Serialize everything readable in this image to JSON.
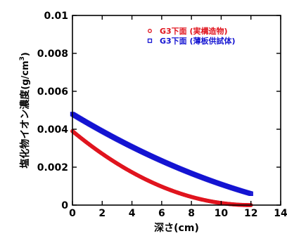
{
  "chart_data": {
    "type": "scatter",
    "title": "",
    "xlabel": "深さ(cm)",
    "ylabel_main": "塩化物イオン濃度",
    "ylabel_unit": "(g/cm",
    "ylabel_sup": "3",
    "ylabel_close": ")",
    "xlim": [
      0,
      14
    ],
    "ylim": [
      0,
      0.01
    ],
    "x_ticks": [
      "0",
      "2",
      "4",
      "6",
      "8",
      "10",
      "12",
      "14"
    ],
    "y_ticks": [
      "0",
      "0.002",
      "0.004",
      "0.006",
      "0.008",
      "0.01"
    ],
    "grid": false,
    "legend_position": "top-right",
    "series": [
      {
        "name": "G3下面 (実構造物)",
        "color": "#e0141e",
        "marker": "circle",
        "x_start": 0,
        "x_end": 12,
        "y_at_x0": 0.0039,
        "y_at_xend": 0.0,
        "model": "quadratic-to-zero"
      },
      {
        "name": "G3下面 (薄板供試体)",
        "color": "#1414d2",
        "marker": "square",
        "x_start": 0,
        "x_end": 12,
        "y_at_x0": 0.0048,
        "y_at_xend": 0.0006,
        "model": "mild-quadratic"
      }
    ]
  }
}
